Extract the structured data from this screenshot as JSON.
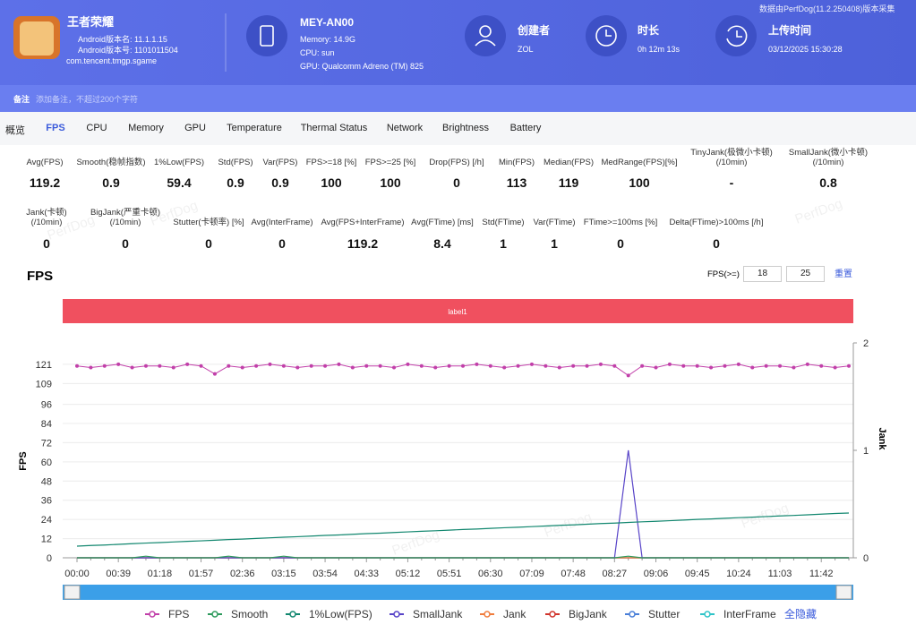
{
  "header": {
    "app_name": "王者荣耀",
    "version_name": "Android版本名: 11.1.1.15",
    "version_code": "Android版本号: 1101011504",
    "package": "com.tencent.tmgp.sgame",
    "device": "MEY-AN00",
    "memory": "Memory: 14.9G",
    "cpu": "CPU: sun",
    "gpu": "GPU: Qualcomm Adreno (TM) 825",
    "creator_label": "创建者",
    "creator": "ZOL",
    "duration_label": "时长",
    "duration": "0h 12m 13s",
    "upload_label": "上传时间",
    "upload_time": "03/12/2025 15:30:28",
    "source": "数据由PerfDog(11.2.250408)版本采集"
  },
  "note": {
    "label": "备注",
    "placeholder": "添加备注，不超过200个字符"
  },
  "tabs": [
    "概览",
    "FPS",
    "CPU",
    "Memory",
    "GPU",
    "Temperature",
    "Thermal Status",
    "Network",
    "Brightness",
    "Battery"
  ],
  "stats": [
    [
      {
        "label": "Avg(FPS)",
        "value": 119.2
      },
      {
        "label": "Smooth(稳帧指数)",
        "value": 0.9
      },
      {
        "label": "1%Low(FPS)",
        "value": 59.4
      },
      {
        "label": "Std(FPS)",
        "value": 0.9
      },
      {
        "label": "Var(FPS)",
        "value": 0.9
      },
      {
        "label": "FPS>=18 [%]",
        "value": 100
      },
      {
        "label": "FPS>=25 [%]",
        "value": 100
      },
      {
        "label": "Drop(FPS) [/h]",
        "value": 0
      },
      {
        "label": "Min(FPS)",
        "value": 113
      },
      {
        "label": "Median(FPS)",
        "value": 119
      },
      {
        "label": "MedRange(FPS)[%]",
        "value": 100
      },
      {
        "label": "TinyJank(极微小卡顿)\n(/10min)",
        "value": "-"
      },
      {
        "label": "SmallJank(微小卡顿)\n(/10min)",
        "value": 0.8
      }
    ],
    [
      {
        "label": "Jank(卡顿)\n(/10min)",
        "value": 0
      },
      {
        "label": "BigJank(严重卡顿)\n(/10min)",
        "value": 0
      },
      {
        "label": "Stutter(卡顿率) [%]",
        "value": 0
      },
      {
        "label": "Avg(InterFrame)",
        "value": 0
      },
      {
        "label": "Avg(FPS+InterFrame)",
        "value": 119.2
      },
      {
        "label": "Avg(FTime) [ms]",
        "value": 8.4
      },
      {
        "label": "Std(FTime)",
        "value": 1
      },
      {
        "label": "Var(FTime)",
        "value": 1
      },
      {
        "label": "FTime>=100ms [%]",
        "value": 0
      },
      {
        "label": "Delta(FTime)>100ms [/h]",
        "value": 0
      }
    ]
  ],
  "watermark": "PerfDog",
  "chart_data": {
    "type": "line",
    "title": "FPS",
    "threshold_label": "FPS(>=)",
    "thresholds": [
      18,
      25
    ],
    "reset": "重置",
    "band_label": "label1",
    "y_label": "FPS",
    "y2_label": "Jank",
    "hide_all": "全隐藏",
    "grid": true,
    "ylim": [
      0,
      134.4
    ],
    "yticks": [
      0,
      12,
      24,
      36,
      48,
      60,
      72,
      84,
      96,
      109,
      121
    ],
    "y2lim": [
      0,
      2
    ],
    "y2ticks": [
      0,
      1,
      2
    ],
    "categories": [
      "00:00",
      null,
      null,
      "00:39",
      null,
      null,
      "01:18",
      null,
      null,
      "01:57",
      null,
      null,
      "02:36",
      null,
      null,
      "03:15",
      null,
      null,
      "03:54",
      null,
      null,
      "04:33",
      null,
      null,
      "05:12",
      null,
      null,
      "05:51",
      null,
      null,
      "06:30",
      null,
      null,
      "07:09",
      null,
      null,
      "07:48",
      null,
      null,
      "08:27",
      null,
      null,
      "09:06",
      null,
      null,
      "09:45",
      null,
      null,
      "10:24",
      null,
      null,
      "11:03",
      null,
      null,
      "11:42",
      null,
      null
    ],
    "series": [
      {
        "name": "FPS",
        "color": "#c13fa9",
        "values": [
          120,
          119,
          120,
          121,
          119,
          120,
          120,
          119,
          121,
          120,
          115,
          120,
          119,
          120,
          121,
          120,
          119,
          120,
          120,
          121,
          119,
          120,
          120,
          119,
          121,
          120,
          119,
          120,
          120,
          121,
          120,
          119,
          120,
          121,
          120,
          119,
          120,
          120,
          121,
          120,
          114,
          120,
          119,
          121,
          120,
          120,
          119,
          120,
          121,
          119,
          120,
          120,
          119,
          121,
          120,
          119,
          120
        ]
      },
      {
        "name": "Smooth",
        "color": "#2e9a5c",
        "values": [
          0,
          0,
          0,
          0,
          0,
          1,
          0,
          0,
          0,
          0,
          0,
          1,
          0,
          0,
          0,
          1,
          0,
          0,
          0,
          0,
          0,
          0,
          0,
          0,
          0,
          0,
          0,
          0,
          0,
          0,
          0,
          0,
          0,
          0,
          0,
          0,
          0,
          0,
          0,
          0,
          1,
          0,
          0,
          0,
          0,
          0,
          0,
          0,
          0,
          0,
          0,
          0,
          0,
          0,
          0,
          0,
          0
        ]
      },
      {
        "name": "1%Low(FPS)",
        "color": "#12876f",
        "values": [
          7.3,
          7.7,
          8.0,
          8.4,
          8.8,
          9.2,
          9.5,
          9.9,
          10.3,
          10.6,
          11.0,
          11.4,
          11.7,
          12.1,
          12.5,
          12.9,
          13.2,
          13.6,
          14.0,
          14.3,
          14.7,
          15.1,
          15.4,
          15.8,
          16.2,
          16.6,
          16.9,
          17.3,
          17.7,
          18.0,
          18.4,
          18.8,
          19.1,
          19.5,
          19.9,
          20.3,
          20.6,
          21.0,
          21.4,
          21.7,
          22.1,
          22.5,
          22.8,
          23.2,
          23.6,
          24.0,
          24.3,
          24.7,
          25.1,
          25.4,
          25.8,
          26.2,
          26.5,
          26.9,
          27.3,
          27.7,
          28.0
        ]
      },
      {
        "name": "SmallJank",
        "color": "#5844c8",
        "axis": "y2",
        "values": [
          0,
          0,
          0,
          0,
          0,
          0,
          0,
          0,
          0,
          0,
          0,
          0,
          0,
          0,
          0,
          0,
          0,
          0,
          0,
          0,
          0,
          0,
          0,
          0,
          0,
          0,
          0,
          0,
          0,
          0,
          0,
          0,
          0,
          0,
          0,
          0,
          0,
          0,
          0,
          0,
          1,
          0,
          0,
          0,
          0,
          0,
          0,
          0,
          0,
          0,
          0,
          0,
          0,
          0,
          0,
          0,
          0
        ]
      },
      {
        "name": "Jank",
        "color": "#f07c3c",
        "axis": "y2",
        "values": [
          0,
          0,
          0,
          0,
          0,
          0,
          0,
          0,
          0,
          0,
          0,
          0,
          0,
          0,
          0,
          0,
          0,
          0,
          0,
          0,
          0,
          0,
          0,
          0,
          0,
          0,
          0,
          0,
          0,
          0,
          0,
          0,
          0,
          0,
          0,
          0,
          0,
          0,
          0,
          0,
          0,
          0,
          0,
          0,
          0,
          0,
          0,
          0,
          0,
          0,
          0,
          0,
          0,
          0,
          0,
          0,
          0
        ]
      },
      {
        "name": "BigJank",
        "color": "#d0342c",
        "axis": "y2",
        "values": [
          0,
          0,
          0,
          0,
          0,
          0,
          0,
          0,
          0,
          0,
          0,
          0,
          0,
          0,
          0,
          0,
          0,
          0,
          0,
          0,
          0,
          0,
          0,
          0,
          0,
          0,
          0,
          0,
          0,
          0,
          0,
          0,
          0,
          0,
          0,
          0,
          0,
          0,
          0,
          0,
          0,
          0,
          0,
          0,
          0,
          0,
          0,
          0,
          0,
          0,
          0,
          0,
          0,
          0,
          0,
          0,
          0
        ]
      },
      {
        "name": "Stutter",
        "color": "#4a7fd8",
        "axis": "y2",
        "values": [
          0,
          0,
          0,
          0,
          0,
          0,
          0,
          0,
          0,
          0,
          0,
          0,
          0,
          0,
          0,
          0,
          0,
          0,
          0,
          0,
          0,
          0,
          0,
          0,
          0,
          0,
          0,
          0,
          0,
          0,
          0,
          0,
          0,
          0,
          0,
          0,
          0,
          0,
          0,
          0,
          0,
          0,
          0,
          0,
          0,
          0,
          0,
          0,
          0,
          0,
          0,
          0,
          0,
          0,
          0,
          0,
          0
        ]
      },
      {
        "name": "InterFrame",
        "color": "#2fc4c8",
        "axis": "y2",
        "values": [
          0,
          0,
          0,
          0,
          0,
          0,
          0,
          0,
          0,
          0,
          0,
          0,
          0,
          0,
          0,
          0,
          0,
          0,
          0,
          0,
          0,
          0,
          0,
          0,
          0,
          0,
          0,
          0,
          0,
          0,
          0,
          0,
          0,
          0,
          0,
          0,
          0,
          0,
          0,
          0,
          0,
          0,
          0,
          0,
          0,
          0,
          0,
          0,
          0,
          0,
          0,
          0,
          0,
          0,
          0,
          0,
          0
        ]
      }
    ]
  }
}
